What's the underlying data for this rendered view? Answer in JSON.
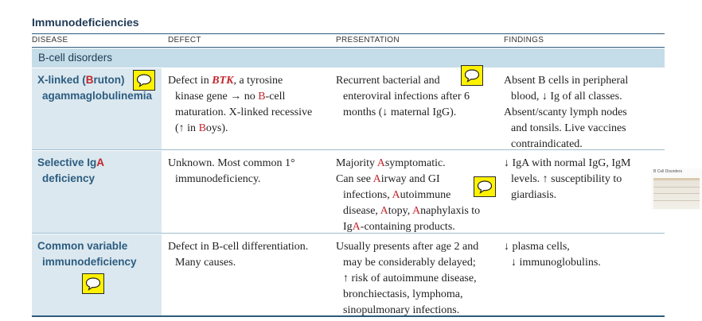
{
  "title": "Immunodeficiencies",
  "columns": [
    "DISEASE",
    "DEFECT",
    "PRESENTATION",
    "FINDINGS"
  ],
  "section": "B-cell disorders",
  "rows": [
    {
      "disease": [
        "X-linked (Bruton)",
        "agammaglobulinemia"
      ],
      "defect": [
        "Defect in BTK, a tyrosine",
        "kinase gene → no B-cell",
        "maturation. X-linked recessive",
        "(↑ in Boys)."
      ],
      "presentation": [
        "Recurrent bacterial and",
        "enteroviral infections after 6",
        "months (↓ maternal IgG)."
      ],
      "findings": [
        "Absent B cells in peripheral",
        "blood, ↓ Ig of all classes.",
        "Absent/scanty lymph nodes",
        "and tonsils. Live vaccines",
        "contraindicated."
      ]
    },
    {
      "disease": [
        "Selective IgA",
        "deficiency"
      ],
      "defect": [
        "Unknown. Most common 1°",
        "immunodeficiency."
      ],
      "presentation": [
        "Majority Asymptomatic.",
        "Can see Airway and GI",
        "infections, Autoimmune",
        "disease, Atopy, Anaphylaxis to",
        "IgA-containing products."
      ],
      "findings": [
        "↓ IgA with normal IgG, IgM",
        "levels. ↑ susceptibility to",
        "giardiasis."
      ]
    },
    {
      "disease": [
        "Common variable",
        "immunodeficiency"
      ],
      "defect": [
        "Defect in B-cell differentiation.",
        "Many causes."
      ],
      "presentation": [
        "Usually presents after age 2 and",
        "may be considerably delayed;",
        "↑ risk of autoimmune disease,",
        "bronchiectasis, lymphoma,",
        "sinopulmonary infections."
      ],
      "findings": [
        "↓ plasma cells,",
        "↓ immunoglobulins."
      ]
    }
  ],
  "thumbnail_title": "B Cell Disorders",
  "colors": {
    "header": "#1f3a56",
    "disease_name": "#2c5c80",
    "emphasis": "#c0262d",
    "section_bg": "#c5dde8",
    "name_bg": "#dbe8ef"
  },
  "icons": [
    "comment-note-icon"
  ]
}
